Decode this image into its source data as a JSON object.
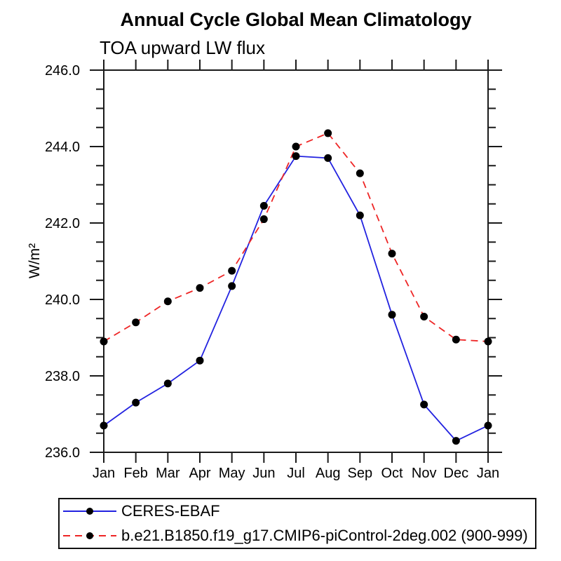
{
  "window": {
    "background": "#ffffff"
  },
  "chart_data": {
    "type": "line",
    "title": "Annual Cycle Global Mean Climatology",
    "subtitle": "TOA upward LW flux",
    "ylabel": "W/m²",
    "x_categories": [
      "Jan",
      "Feb",
      "Mar",
      "Apr",
      "May",
      "Jun",
      "Jul",
      "Aug",
      "Sep",
      "Oct",
      "Nov",
      "Dec",
      "Jan"
    ],
    "ylim": [
      236.0,
      246.0
    ],
    "ytick_labels": [
      "236.0",
      "238.0",
      "240.0",
      "242.0",
      "244.0",
      "246.0"
    ],
    "ytick_minor_step": 0.5,
    "grid": false,
    "axis_color": "#1a1a1a",
    "text_color": "#000000",
    "legend_position": "bottom-left-outside",
    "series": [
      {
        "id": "ceres-ebaf",
        "name": "CERES-EBAF",
        "color": "#2222e0",
        "line_style": "solid",
        "marker": "filled-circle",
        "marker_color": "#000000",
        "values": [
          236.7,
          237.3,
          237.8,
          238.4,
          240.35,
          242.45,
          243.75,
          243.7,
          242.2,
          239.6,
          237.25,
          236.3,
          236.7
        ]
      },
      {
        "id": "picontrol-model",
        "name": "b.e21.B1850.f19_g17.CMIP6-piControl-2deg.002 (900-999)",
        "color": "#ee2525",
        "line_style": "dashed",
        "marker": "filled-circle",
        "marker_color": "#000000",
        "values": [
          238.9,
          239.4,
          239.95,
          240.3,
          240.75,
          242.1,
          244.0,
          244.35,
          243.3,
          241.2,
          239.55,
          238.95,
          238.9
        ]
      }
    ]
  }
}
